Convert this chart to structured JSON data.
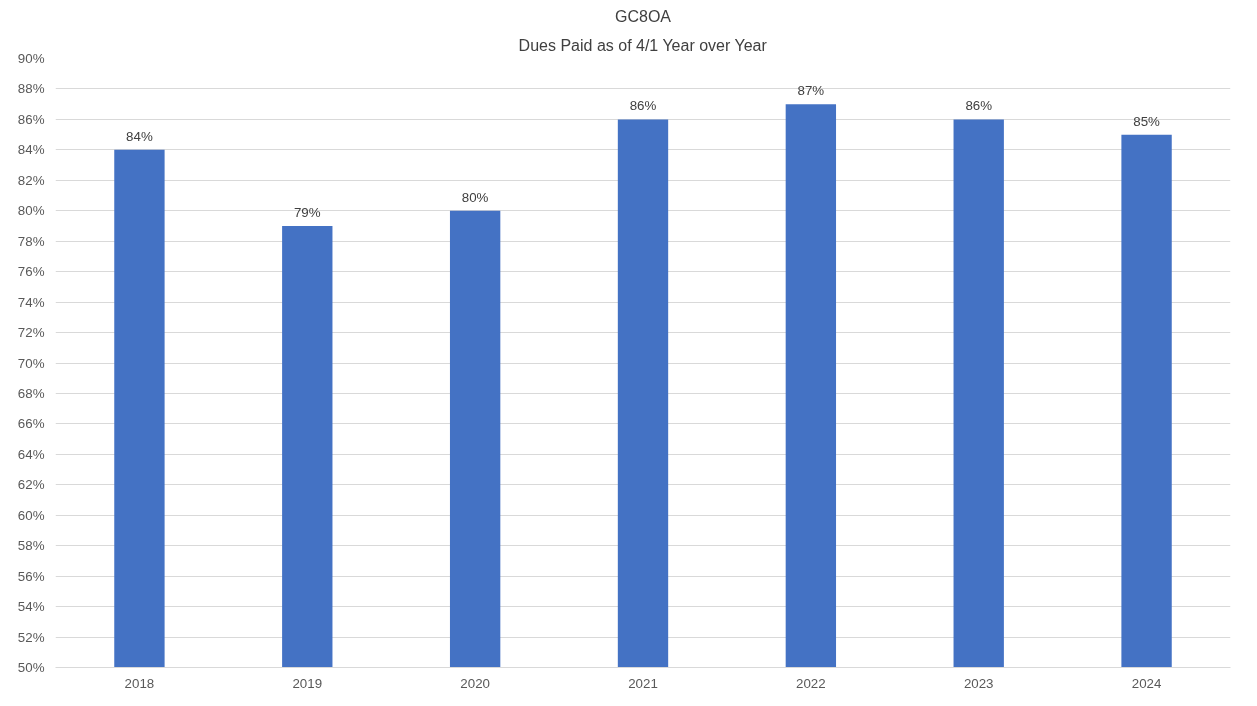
{
  "chart_data": {
    "type": "bar",
    "title": "GC8OA",
    "subtitle": "Dues Paid as of 4/1 Year over Year",
    "categories": [
      "2018",
      "2019",
      "2020",
      "2021",
      "2022",
      "2023",
      "2024"
    ],
    "values": [
      84,
      79,
      80,
      86,
      87,
      86,
      85
    ],
    "value_labels": [
      "84%",
      "79%",
      "80%",
      "86%",
      "87%",
      "86%",
      "85%"
    ],
    "color": "#4472c4",
    "ylim": [
      50,
      90
    ],
    "yticks": [
      {
        "value": 50,
        "label": "50%"
      },
      {
        "value": 52,
        "label": "52%"
      },
      {
        "value": 54,
        "label": "54%"
      },
      {
        "value": 56,
        "label": "56%"
      },
      {
        "value": 58,
        "label": "58%"
      },
      {
        "value": 60,
        "label": "60%"
      },
      {
        "value": 62,
        "label": "62%"
      },
      {
        "value": 64,
        "label": "64%"
      },
      {
        "value": 66,
        "label": "66%"
      },
      {
        "value": 68,
        "label": "68%"
      },
      {
        "value": 70,
        "label": "70%"
      },
      {
        "value": 72,
        "label": "72%"
      },
      {
        "value": 74,
        "label": "74%"
      },
      {
        "value": 76,
        "label": "76%"
      },
      {
        "value": 78,
        "label": "78%"
      },
      {
        "value": 80,
        "label": "80%"
      },
      {
        "value": 82,
        "label": "82%"
      },
      {
        "value": 84,
        "label": "84%"
      },
      {
        "value": 86,
        "label": "86%"
      },
      {
        "value": 88,
        "label": "88%"
      },
      {
        "value": 90,
        "label": "90%"
      }
    ],
    "grid": "y"
  }
}
